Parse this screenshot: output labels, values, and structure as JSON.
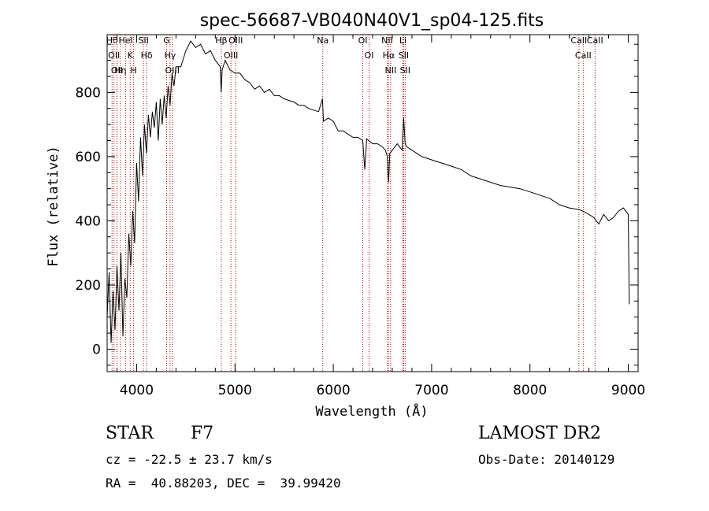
{
  "chart_data": {
    "type": "line",
    "title": "spec-56687-VB040N40V1_sp04-125.fits",
    "xlabel": "Wavelength (Å)",
    "ylabel": "Flux (relative)",
    "xlim": [
      3700,
      9100
    ],
    "ylim": [
      -70,
      980
    ],
    "xticks": [
      4000,
      5000,
      6000,
      7000,
      8000,
      9000
    ],
    "yticks": [
      0,
      200,
      400,
      600,
      800
    ],
    "grid": false,
    "line_color": "#000000",
    "marker_color": "#c00000",
    "series": [
      {
        "x": [
          3700,
          3720,
          3740,
          3760,
          3780,
          3800,
          3820,
          3840,
          3860,
          3880,
          3900,
          3920,
          3940,
          3960,
          3980,
          4000,
          4020,
          4040,
          4060,
          4080,
          4100,
          4120,
          4140,
          4160,
          4180,
          4200,
          4220,
          4240,
          4260,
          4280,
          4300,
          4320,
          4340,
          4360,
          4380,
          4400,
          4450,
          4500,
          4550,
          4600,
          4650,
          4700,
          4750,
          4800,
          4850,
          4860,
          4870,
          4900,
          4950,
          5000,
          5050,
          5100,
          5150,
          5200,
          5250,
          5300,
          5350,
          5400,
          5450,
          5500,
          5550,
          5600,
          5650,
          5700,
          5750,
          5800,
          5850,
          5890,
          5900,
          5950,
          6000,
          6050,
          6100,
          6150,
          6200,
          6250,
          6300,
          6320,
          6340,
          6400,
          6450,
          6500,
          6530,
          6550,
          6563,
          6575,
          6600,
          6650,
          6700,
          6716,
          6731,
          6750,
          6800,
          6850,
          6900,
          6950,
          7000,
          7100,
          7200,
          7300,
          7400,
          7500,
          7600,
          7700,
          7800,
          7900,
          8000,
          8100,
          8200,
          8300,
          8400,
          8500,
          8540,
          8600,
          8650,
          8700,
          8750,
          8800,
          8850,
          8900,
          8950,
          9000,
          9010
        ],
        "y": [
          100,
          240,
          20,
          180,
          60,
          260,
          120,
          300,
          40,
          220,
          160,
          360,
          260,
          430,
          330,
          580,
          460,
          660,
          540,
          700,
          610,
          730,
          660,
          740,
          690,
          770,
          650,
          780,
          700,
          790,
          720,
          820,
          760,
          860,
          820,
          880,
          880,
          930,
          960,
          940,
          950,
          920,
          930,
          900,
          880,
          800,
          870,
          900,
          870,
          860,
          860,
          840,
          830,
          810,
          820,
          800,
          810,
          790,
          790,
          780,
          775,
          770,
          760,
          760,
          750,
          745,
          740,
          780,
          710,
          720,
          710,
          680,
          680,
          670,
          660,
          660,
          650,
          560,
          655,
          640,
          640,
          630,
          620,
          600,
          520,
          610,
          620,
          640,
          620,
          720,
          640,
          630,
          620,
          610,
          600,
          595,
          590,
          580,
          570,
          560,
          540,
          530,
          520,
          510,
          505,
          500,
          490,
          480,
          470,
          450,
          440,
          435,
          430,
          420,
          410,
          390,
          420,
          400,
          410,
          430,
          440,
          420,
          140
        ]
      }
    ],
    "line_markers": [
      {
        "x": 3750,
        "label": "Hθ"
      },
      {
        "x": 3770,
        "label": "OII"
      },
      {
        "x": 3800,
        "label": "OII"
      },
      {
        "x": 3835,
        "label": "Hη"
      },
      {
        "x": 3889,
        "label": "HeI"
      },
      {
        "x": 3934,
        "label": "K"
      },
      {
        "x": 3969,
        "label": "H"
      },
      {
        "x": 4070,
        "label": "SII"
      },
      {
        "x": 4102,
        "label": "Hδ"
      },
      {
        "x": 4305,
        "label": "G"
      },
      {
        "x": 4340,
        "label": "Hγ"
      },
      {
        "x": 4363,
        "label": "OIII"
      },
      {
        "x": 4861,
        "label": "Hβ"
      },
      {
        "x": 4959,
        "label": "OIII"
      },
      {
        "x": 5007,
        "label": "OIII"
      },
      {
        "x": 5893,
        "label": "Na"
      },
      {
        "x": 6300,
        "label": "OI"
      },
      {
        "x": 6364,
        "label": "OI"
      },
      {
        "x": 6548,
        "label": "NII"
      },
      {
        "x": 6563,
        "label": "Hα"
      },
      {
        "x": 6583,
        "label": "NII"
      },
      {
        "x": 6708,
        "label": "Li"
      },
      {
        "x": 6716,
        "label": "SII"
      },
      {
        "x": 6731,
        "label": "SII"
      },
      {
        "x": 8498,
        "label": "CaII"
      },
      {
        "x": 8542,
        "label": "CaII"
      },
      {
        "x": 8662,
        "label": "CaII"
      }
    ]
  },
  "info": {
    "class_label": "STAR",
    "subclass": "F7",
    "survey": "LAMOST DR2",
    "cz_line": "cz = -22.5 ± 23.7 km/s",
    "obs_date_line": "Obs-Date: 20140129",
    "coords_line": "RA =  40.88203, DEC =  39.99420"
  }
}
